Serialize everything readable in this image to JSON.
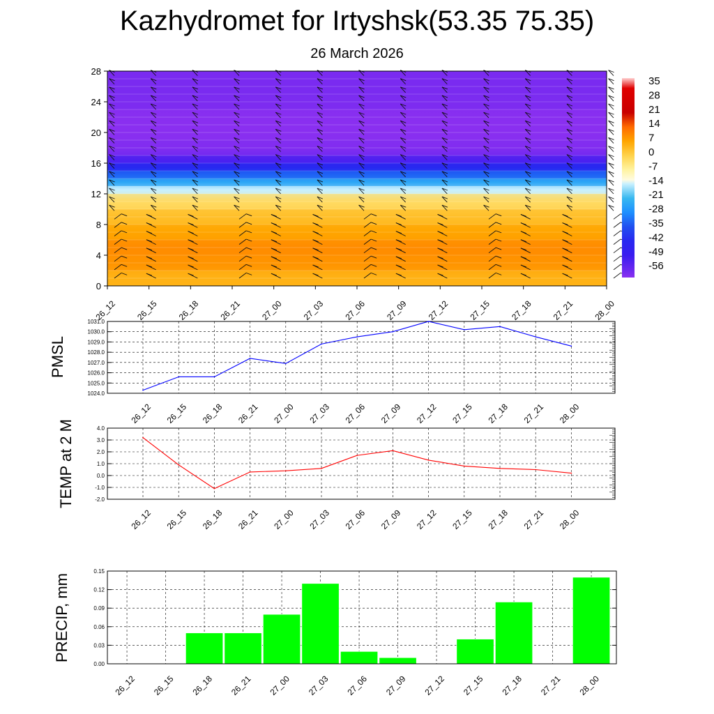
{
  "header": {
    "title": "Kazhydromet for Irtyshsk(53.35 75.35)",
    "date": "26 March 2026"
  },
  "time_labels": [
    "26_12",
    "26_15",
    "26_18",
    "26_21",
    "27_00",
    "27_03",
    "27_06",
    "27_09",
    "27_12",
    "27_15",
    "27_18",
    "27_21",
    "28_00"
  ],
  "chart_data": [
    {
      "type": "heatmap",
      "name": "vertical-cross-section",
      "x": [
        "26_12",
        "26_15",
        "26_18",
        "26_21",
        "27_00",
        "27_03",
        "27_06",
        "27_09",
        "27_12",
        "27_15",
        "27_18",
        "27_21",
        "28_00"
      ],
      "y_ticks": [
        "0",
        "4",
        "8",
        "12",
        "16",
        "20",
        "24",
        "28"
      ],
      "ylim": [
        0,
        28
      ],
      "layers": [
        {
          "from": 0,
          "to": 2,
          "value": 5
        },
        {
          "from": 2,
          "to": 4,
          "value": 9
        },
        {
          "from": 4,
          "to": 6,
          "value": 10
        },
        {
          "from": 6,
          "to": 8,
          "value": 7
        },
        {
          "from": 8,
          "to": 10,
          "value": 3
        },
        {
          "from": 10,
          "to": 12,
          "value": -2
        },
        {
          "from": 12,
          "to": 13,
          "value": -14
        },
        {
          "from": 13,
          "to": 14,
          "value": -24
        },
        {
          "from": 14,
          "to": 15,
          "value": -33
        },
        {
          "from": 15,
          "to": 16,
          "value": -42
        },
        {
          "from": 16,
          "to": 17,
          "value": -52
        },
        {
          "from": 17,
          "to": 19,
          "value": -59
        },
        {
          "from": 19,
          "to": 23,
          "value": -60
        },
        {
          "from": 23,
          "to": 28,
          "value": -58
        }
      ],
      "colorbar": {
        "labels": [
          "35",
          "28",
          "21",
          "14",
          "7",
          "0",
          "-7",
          "-14",
          "-21",
          "-28",
          "-35",
          "-42",
          "-49",
          "-56"
        ],
        "stops": [
          {
            "v": 38,
            "c": "#ffd0d0"
          },
          {
            "v": 33,
            "c": "#e00000"
          },
          {
            "v": 21,
            "c": "#c80000"
          },
          {
            "v": 14,
            "c": "#ff6a00"
          },
          {
            "v": 7,
            "c": "#ffa500"
          },
          {
            "v": 0,
            "c": "#ffd24a"
          },
          {
            "v": -7,
            "c": "#fff3a0"
          },
          {
            "v": -12,
            "c": "#fffbe0"
          },
          {
            "v": -14,
            "c": "#c8f0ff"
          },
          {
            "v": -21,
            "c": "#38b8f0"
          },
          {
            "v": -28,
            "c": "#1e90ff"
          },
          {
            "v": -35,
            "c": "#2050f0"
          },
          {
            "v": -42,
            "c": "#2828f0"
          },
          {
            "v": -49,
            "c": "#3a1cf0"
          },
          {
            "v": -56,
            "c": "#6a28f0"
          },
          {
            "v": -60,
            "c": "#8a30f0"
          }
        ]
      }
    },
    {
      "type": "line",
      "name": "pmsl",
      "ylabel": "PMSL",
      "x": [
        "26_12",
        "26_15",
        "26_18",
        "26_21",
        "27_00",
        "27_03",
        "27_06",
        "27_09",
        "27_12",
        "27_15",
        "27_18",
        "27_21",
        "28_00"
      ],
      "values": [
        1024.3,
        1025.6,
        1025.6,
        1027.4,
        1026.9,
        1028.8,
        1029.5,
        1030.0,
        1031.0,
        1030.2,
        1030.5,
        1029.5,
        1028.6
      ],
      "ylim": [
        1024.0,
        1031.0
      ],
      "ticks": [
        "1024.0",
        "1025.0",
        "1026.0",
        "1027.0",
        "1028.0",
        "1029.0",
        "1030.0",
        "1031.0"
      ],
      "color": "#0000ff"
    },
    {
      "type": "line",
      "name": "temp-2m",
      "ylabel": "TEMP at 2 M",
      "x": [
        "26_12",
        "26_15",
        "26_18",
        "26_21",
        "27_00",
        "27_03",
        "27_06",
        "27_09",
        "27_12",
        "27_15",
        "27_18",
        "27_21",
        "28_00"
      ],
      "values": [
        3.2,
        0.9,
        -1.1,
        0.3,
        0.4,
        0.6,
        1.7,
        2.1,
        1.3,
        0.8,
        0.6,
        0.5,
        0.2
      ],
      "ylim": [
        -2.0,
        4.0
      ],
      "ticks": [
        "-2.0",
        "-1.0",
        "0.0",
        "1.0",
        "2.0",
        "3.0",
        "4.0"
      ],
      "color": "#ff0000"
    },
    {
      "type": "bar",
      "name": "precip",
      "ylabel": "PRECIP, mm",
      "categories": [
        "26_12",
        "26_15",
        "26_18",
        "26_21",
        "27_00",
        "27_03",
        "27_06",
        "27_09",
        "27_12",
        "27_15",
        "27_18",
        "27_21",
        "28_00"
      ],
      "values": [
        0,
        0,
        0.05,
        0.05,
        0.08,
        0.13,
        0.02,
        0.01,
        0,
        0.04,
        0.1,
        0,
        0.14
      ],
      "ylim": [
        0,
        0.15
      ],
      "ticks": [
        "0.00",
        "0.03",
        "0.06",
        "0.09",
        "0.12",
        "0.15"
      ],
      "color": "#00ff00"
    }
  ]
}
